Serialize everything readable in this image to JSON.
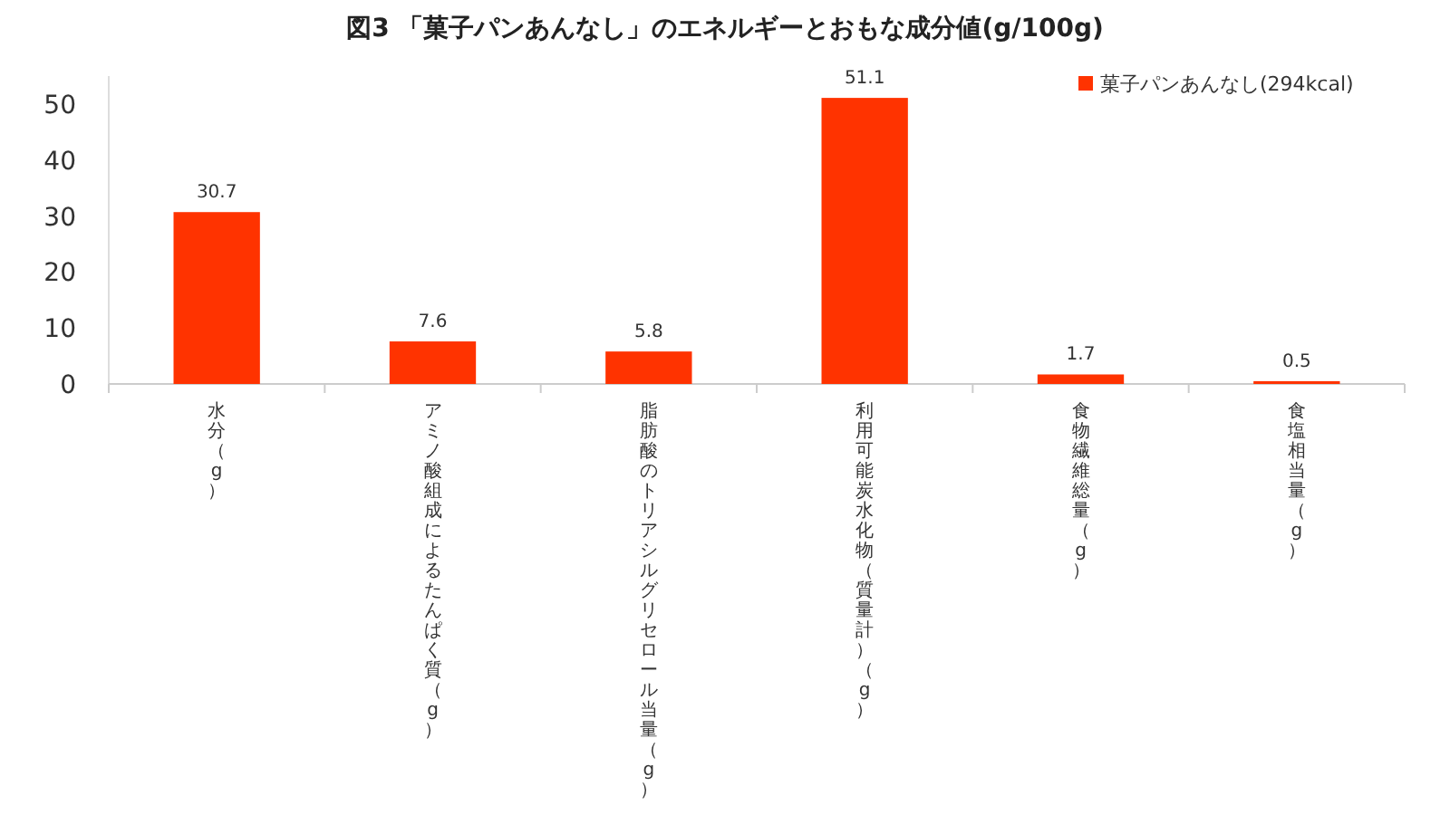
{
  "chart_data": {
    "type": "bar",
    "title": "図3 「菓子パンあんなし」のエネルギーとおもな成分値(g/100g)",
    "categories": [
      "水分（g）",
      "アミノ酸組成によるたんぱく質（g）",
      "脂肪酸のトリアシルグリセロール当量（g）",
      "利用可能炭水化物（質量計）（g）",
      "食物繊維総量（g）",
      "食塩相当量（g）"
    ],
    "series": [
      {
        "name": "菓子パンあんなし(294kcal)",
        "color": "#ff3300",
        "values": [
          30.7,
          7.6,
          5.8,
          51.1,
          1.7,
          0.5
        ]
      }
    ],
    "ylim": [
      0,
      55
    ],
    "yticks": [
      0,
      10,
      20,
      30,
      40,
      50
    ],
    "data_labels": true,
    "legend": "top right",
    "grid": false
  }
}
